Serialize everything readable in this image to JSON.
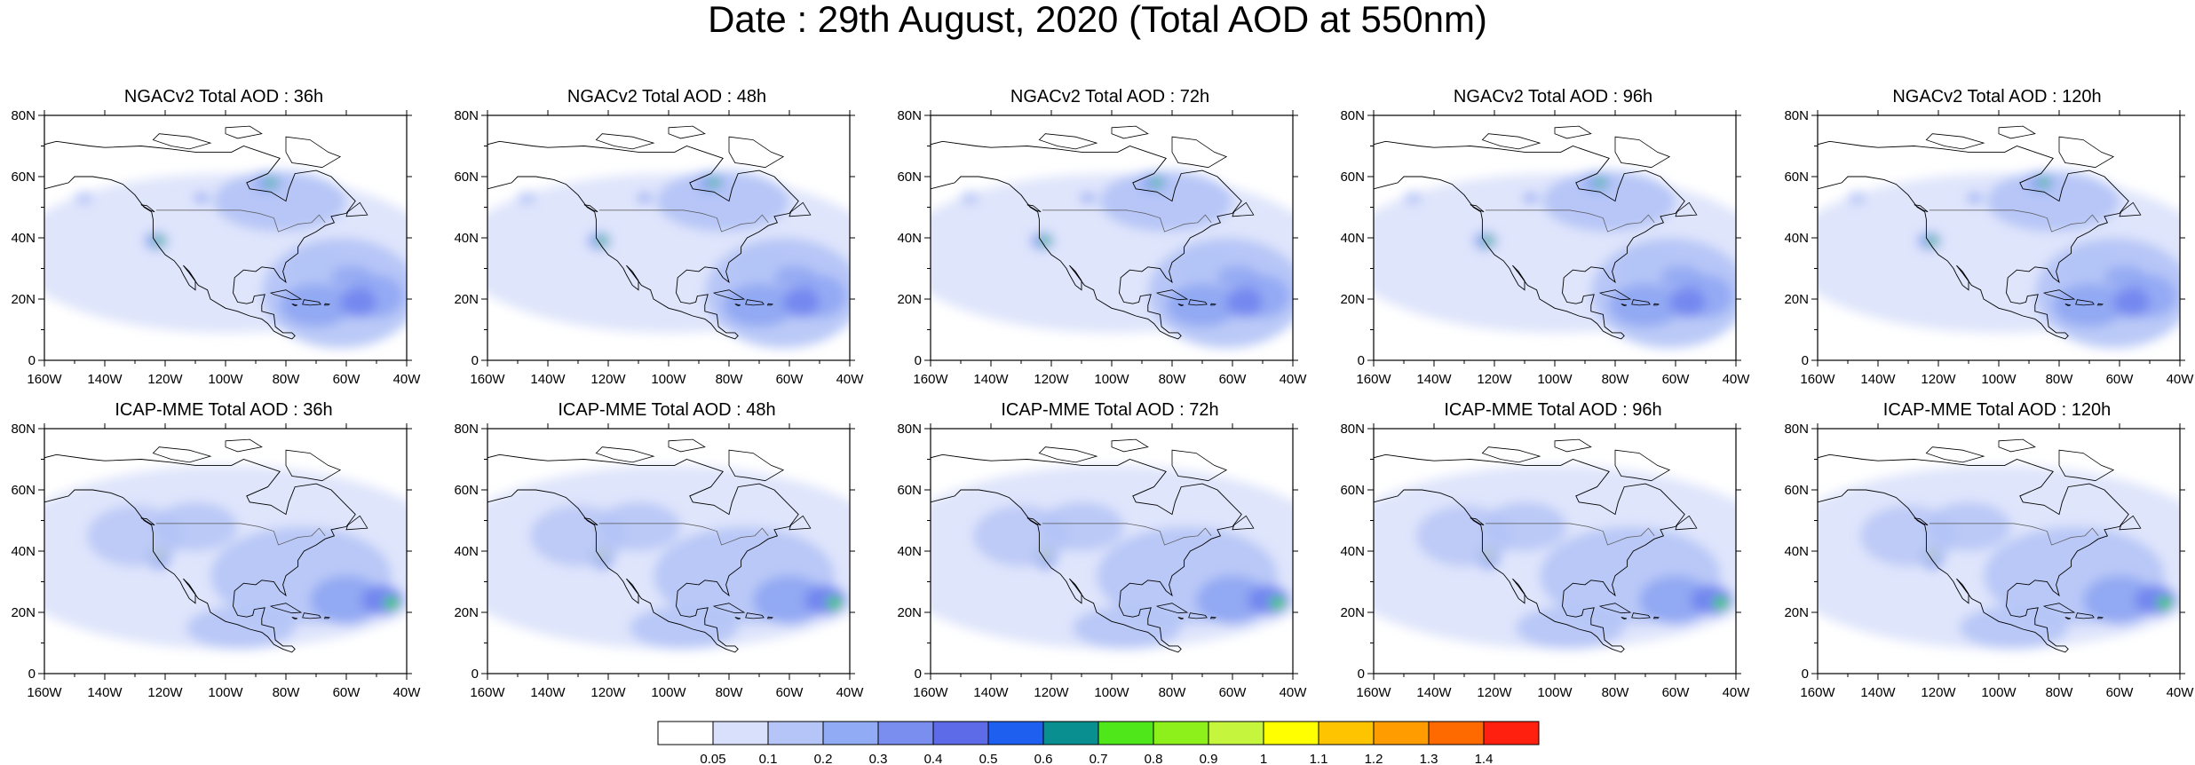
{
  "title": "Date : 29th August, 2020 (Total AOD at 550nm)",
  "panels": [
    {
      "title": "NGACv2 Total AOD : 36h"
    },
    {
      "title": "NGACv2 Total AOD : 48h"
    },
    {
      "title": "NGACv2 Total AOD : 72h"
    },
    {
      "title": "NGACv2 Total AOD : 96h"
    },
    {
      "title": "NGACv2 Total AOD : 120h"
    },
    {
      "title": "ICAP-MME Total AOD : 36h"
    },
    {
      "title": "ICAP-MME Total AOD : 48h"
    },
    {
      "title": "ICAP-MME Total AOD : 72h"
    },
    {
      "title": "ICAP-MME Total AOD : 96h"
    },
    {
      "title": "ICAP-MME Total AOD : 120h"
    }
  ],
  "axes": {
    "x_ticks": [
      "160W",
      "140W",
      "120W",
      "100W",
      "80W",
      "60W",
      "40W"
    ],
    "x_values": [
      -160,
      -140,
      -120,
      -100,
      -80,
      -60,
      -40
    ],
    "y_ticks": [
      "0",
      "20N",
      "40N",
      "60N",
      "80N"
    ],
    "y_values": [
      0,
      20,
      40,
      60,
      80
    ],
    "xlim": [
      -160,
      -40
    ],
    "ylim": [
      0,
      80
    ]
  },
  "colorbar": {
    "labels": [
      "0.05",
      "0.1",
      "0.2",
      "0.3",
      "0.4",
      "0.5",
      "0.6",
      "0.7",
      "0.8",
      "0.9",
      "1",
      "1.1",
      "1.2",
      "1.3",
      "1.4"
    ],
    "colors": [
      "#ffffff",
      "#d8e0fb",
      "#b5c5f7",
      "#91abf5",
      "#7a8ef0",
      "#5e6be8",
      "#1f5ff0",
      "#0a8f90",
      "#4fe61a",
      "#8ef01a",
      "#c6f53d",
      "#ffff00",
      "#ffc400",
      "#ff9d00",
      "#ff6a00",
      "#ff2010"
    ]
  },
  "field_colors": {
    "ocean": "#dde4fb",
    "medium": "#b3c3f6",
    "strong": "#8ea5f3",
    "core": "#6f83ee",
    "green": "#2fd04a",
    "yellow": "#e8f52a",
    "land": "#ffffff"
  }
}
